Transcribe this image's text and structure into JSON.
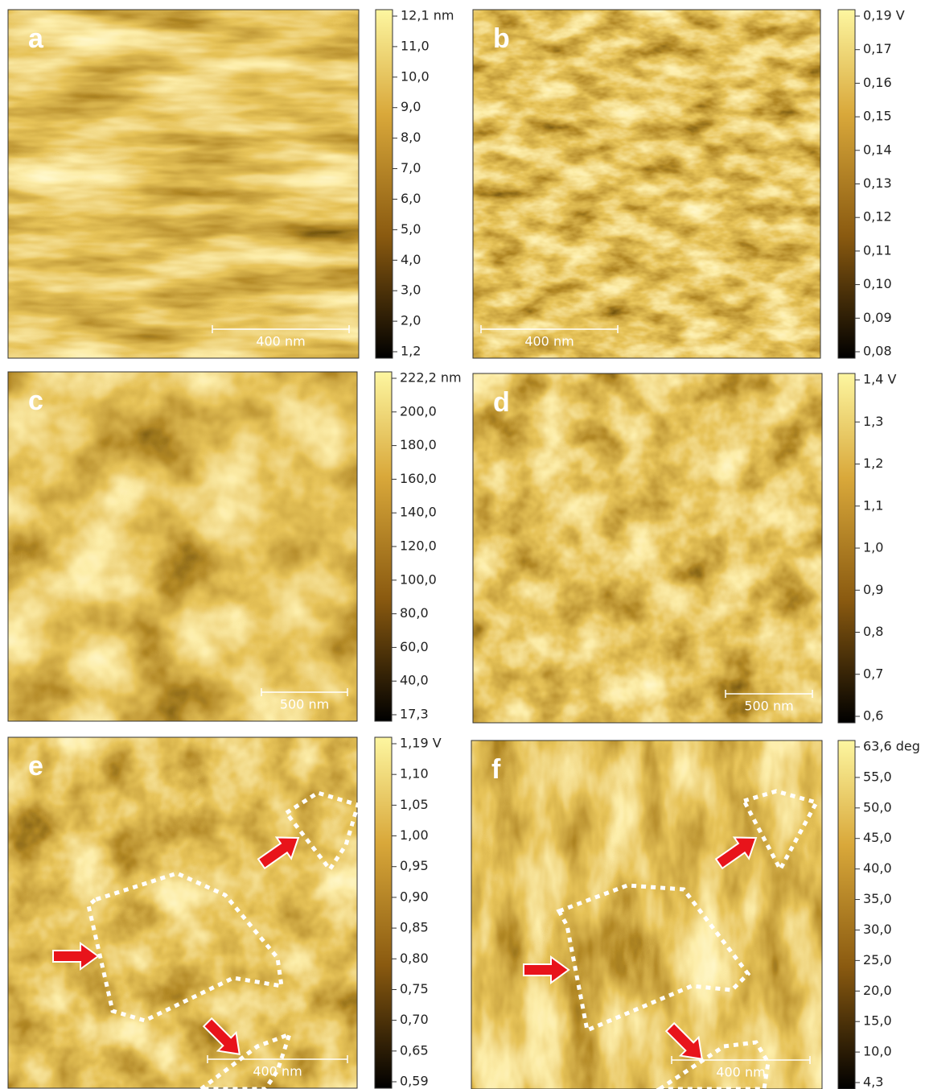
{
  "panels": [
    {
      "label": "a",
      "scale_bar": "400 nm",
      "colorbar": [
        "12,1 nm",
        "11,0",
        "10,0",
        "9,0",
        "8,0",
        "7,0",
        "6,0",
        "5,0",
        "4,0",
        "3,0",
        "2,0",
        "1,2"
      ]
    },
    {
      "label": "b",
      "scale_bar": "400 nm",
      "colorbar": [
        "0,19 V",
        "0,17",
        "0,16",
        "0,15",
        "0,14",
        "0,13",
        "0,12",
        "0,11",
        "0,10",
        "0,09",
        "0,08"
      ]
    },
    {
      "label": "c",
      "scale_bar": "500 nm",
      "colorbar": [
        "222,2 nm",
        "200,0",
        "180,0",
        "160,0",
        "140,0",
        "120,0",
        "100,0",
        "80,0",
        "60,0",
        "40,0",
        "17,3"
      ]
    },
    {
      "label": "d",
      "scale_bar": "500 nm",
      "colorbar": [
        "1,4 V",
        "1,3",
        "1,2",
        "1,1",
        "1,0",
        "0,9",
        "0,8",
        "0,7",
        "0,6"
      ]
    },
    {
      "label": "e",
      "scale_bar": "400 nm",
      "colorbar": [
        "1,19 V",
        "1,10",
        "1,05",
        "1,00",
        "0,95",
        "0,90",
        "0,85",
        "0,80",
        "0,75",
        "0,70",
        "0,65",
        "0,59"
      ]
    },
    {
      "label": "f",
      "scale_bar": "400 nm",
      "colorbar": [
        "63,6 deg",
        "55,0",
        "50,0",
        "45,0",
        "40,0",
        "35,0",
        "30,0",
        "25,0",
        "20,0",
        "15,0",
        "10,0",
        "4,3"
      ]
    }
  ]
}
